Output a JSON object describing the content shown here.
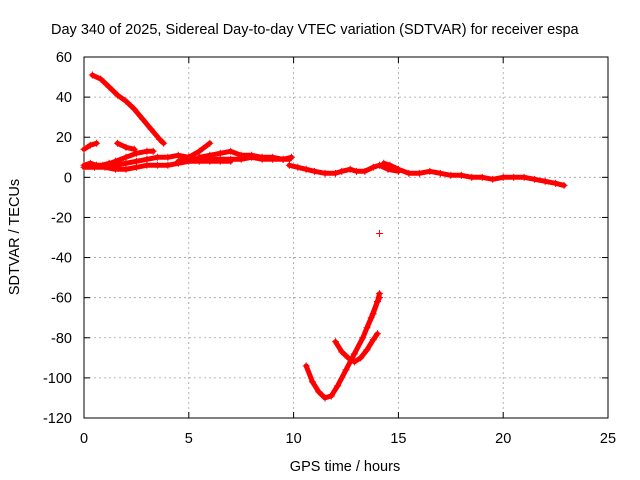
{
  "chart_data": {
    "type": "scatter",
    "title": "Day 340 of 2025, Sidereal Day-to-day VTEC variation (SDTVAR) for receiver espa",
    "xlabel": "GPS time / hours",
    "ylabel": "SDTVAR / TECUs",
    "xlim": [
      0,
      25
    ],
    "ylim": [
      -120,
      60
    ],
    "xticks": [
      "0",
      "5",
      "10",
      "15",
      "20",
      "25"
    ],
    "yticks": [
      "60",
      "40",
      "20",
      "0",
      "-20",
      "-40",
      "-60",
      "-80",
      "-100",
      "-120"
    ],
    "grid": true,
    "marker": "+",
    "color": "#ff0000",
    "series": [
      {
        "name": "arc-1",
        "x": [
          0.0,
          0.3,
          0.6,
          0.9,
          1.2,
          1.5,
          2.0,
          2.5,
          3.0,
          3.5,
          4.0,
          4.5,
          5.0,
          5.5,
          6.0,
          6.5,
          7.0,
          7.5,
          8.0,
          8.5,
          9.0,
          9.5,
          9.8
        ],
        "y": [
          6,
          7,
          6,
          6,
          7,
          6,
          7,
          8,
          9,
          10,
          10,
          11,
          10,
          9,
          9,
          9,
          9,
          9,
          10,
          9,
          9,
          9,
          9
        ]
      },
      {
        "name": "arc-2",
        "x": [
          0.0,
          0.5,
          1.0,
          1.5,
          2.0,
          2.5,
          3.0,
          3.5,
          4.0,
          4.5,
          5.0,
          5.5,
          6.0,
          6.5,
          7.0
        ],
        "y": [
          5,
          5,
          5,
          4,
          4,
          5,
          6,
          6,
          6,
          7,
          8,
          8,
          8,
          8,
          8
        ]
      },
      {
        "name": "arc-3",
        "x": [
          0.0,
          0.3,
          0.6
        ],
        "y": [
          14,
          16,
          17
        ]
      },
      {
        "name": "arc-4",
        "x": [
          0.4,
          0.8,
          1.2,
          1.6,
          2.0,
          2.4,
          2.8,
          3.2,
          3.6,
          3.8
        ],
        "y": [
          51,
          49,
          45,
          41,
          38,
          34,
          29,
          24,
          19,
          17
        ]
      },
      {
        "name": "arc-5",
        "x": [
          1.6,
          2.0,
          2.4
        ],
        "y": [
          17,
          15,
          14
        ]
      },
      {
        "name": "arc-6",
        "x": [
          1.0,
          1.5,
          2.0,
          2.5,
          3.0,
          3.3
        ],
        "y": [
          6,
          8,
          10,
          12,
          13,
          13
        ]
      },
      {
        "name": "arc-7",
        "x": [
          4.5,
          5.0,
          5.5,
          6.0
        ],
        "y": [
          8,
          10,
          13,
          17
        ]
      },
      {
        "name": "arc-8",
        "x": [
          5.5,
          6.0,
          6.5,
          7.0,
          7.5,
          8.0,
          8.5,
          9.0,
          9.5,
          9.9
        ],
        "y": [
          10,
          11,
          12,
          13,
          11,
          11,
          10,
          10,
          9,
          10
        ]
      },
      {
        "name": "arc-9",
        "x": [
          9.8,
          10.2,
          10.6,
          11.0,
          11.5,
          12.0,
          12.3,
          12.7,
          13.0,
          13.4,
          13.8,
          14.1,
          14.5,
          15.0
        ],
        "y": [
          6,
          5,
          4,
          3,
          2,
          2,
          3,
          4,
          3,
          3,
          5,
          6,
          4,
          3
        ]
      },
      {
        "name": "arc-10",
        "x": [
          14.3,
          14.6,
          15.0,
          15.5,
          16.0,
          16.5,
          17.0,
          17.5,
          18.0,
          18.5,
          19.0,
          19.5,
          20.0,
          20.5,
          21.0,
          21.5,
          22.0,
          22.5,
          22.9
        ],
        "y": [
          7,
          6,
          4,
          2,
          2,
          3,
          2,
          1,
          1,
          0,
          0,
          -1,
          0,
          0,
          0,
          -1,
          -2,
          -3,
          -4
        ]
      },
      {
        "name": "arc-11",
        "x": [
          10.6,
          10.9,
          11.2,
          11.5,
          11.8,
          12.1,
          12.5,
          12.9,
          13.3,
          13.7,
          14.0,
          14.1
        ],
        "y": [
          -94,
          -102,
          -107,
          -110,
          -109,
          -104,
          -96,
          -88,
          -80,
          -70,
          -62,
          -58
        ]
      },
      {
        "name": "arc-12",
        "x": [
          12.0,
          12.3,
          12.6,
          12.9,
          13.2,
          13.5,
          13.8,
          14.0
        ],
        "y": [
          -82,
          -87,
          -90,
          -92,
          -90,
          -86,
          -81,
          -78
        ]
      },
      {
        "name": "arc-13",
        "x": [
          13.5,
          13.8,
          14.0,
          14.1
        ],
        "y": [
          -75,
          -68,
          -62,
          -60
        ]
      },
      {
        "name": "outlier",
        "x": [
          14.1
        ],
        "y": [
          -28
        ]
      }
    ]
  }
}
